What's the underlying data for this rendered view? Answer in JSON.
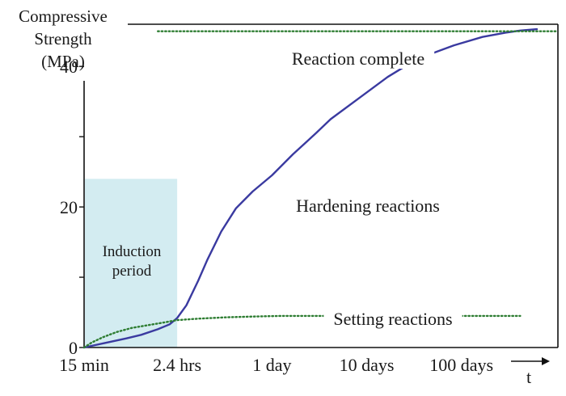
{
  "chart_data": {
    "type": "line",
    "ylabel_lines": [
      "Compressive",
      "Strength",
      "(MPa)"
    ],
    "xlabel": "t",
    "x_ticks": [
      "15 min",
      "2.4 hrs",
      "1 day",
      "10 days",
      "100 days"
    ],
    "x_scale": "log10",
    "x_tick_values_hours": [
      0.25,
      2.4,
      24,
      240,
      2400
    ],
    "xlim_hours": [
      0.25,
      25000
    ],
    "y_ticks": [
      0,
      20,
      40
    ],
    "ylim": [
      0,
      46
    ],
    "shaded_region": {
      "label_lines": [
        "Induction",
        "period"
      ],
      "x_from_hours": 0.25,
      "x_to_hours": 2.4,
      "y_to": 24,
      "color": "#d3ecf1"
    },
    "series": [
      {
        "name": "Hardening reactions",
        "style": "solid",
        "color": "#3a3aa0",
        "x_hours": [
          0.25,
          0.4,
          0.7,
          1.0,
          1.5,
          2.0,
          2.4,
          3,
          4,
          5,
          7,
          10,
          15,
          24,
          40,
          70,
          100,
          200,
          400,
          700,
          1000,
          2000,
          4000,
          7000,
          10000,
          15000
        ],
        "y": [
          0,
          0.6,
          1.3,
          1.8,
          2.6,
          3.3,
          4.2,
          6,
          9.5,
          12.5,
          16.5,
          19.8,
          22.2,
          24.5,
          27.5,
          30.5,
          32.5,
          35.5,
          38.5,
          40.5,
          41.5,
          43.0,
          44.2,
          44.8,
          45.1,
          45.3
        ]
      },
      {
        "name": "Setting reactions",
        "style": "dotted",
        "color": "#2e7d32",
        "x_hours": [
          0.25,
          0.3,
          0.4,
          0.55,
          0.8,
          1.2,
          1.8,
          2.4,
          4,
          8,
          15,
          30,
          60,
          100,
          300,
          1000,
          3000,
          10000
        ],
        "y": [
          0,
          0.7,
          1.5,
          2.2,
          2.8,
          3.2,
          3.6,
          3.9,
          4.1,
          4.3,
          4.4,
          4.5,
          4.5,
          4.5,
          4.5,
          4.5,
          4.5,
          4.5
        ]
      },
      {
        "name": "Reaction complete",
        "style": "dotted",
        "color": "#2e7d32",
        "x_hours": [
          1.5,
          30000
        ],
        "y": [
          45,
          45
        ]
      }
    ]
  }
}
